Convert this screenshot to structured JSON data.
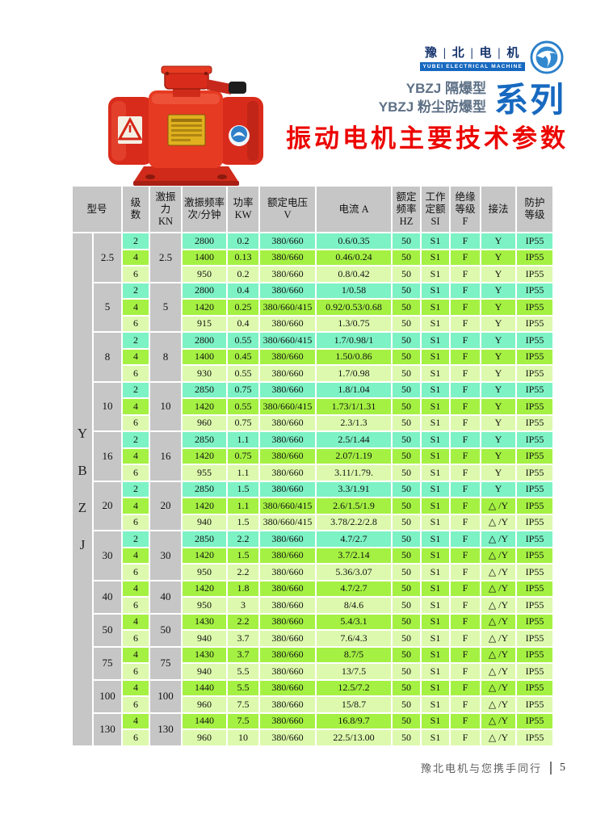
{
  "header": {
    "brand_cn": "豫 | 北 | 电 | 机",
    "brand_en": "YUBEI ELECTRICAL MACHINE",
    "series_line1": "YBZJ 隔爆型",
    "series_line2": "YBZJ 粉尘防爆型",
    "series_label": "系列",
    "title": "振动电机主要技术参数"
  },
  "colors": {
    "accent_blue": "#1769c0",
    "title_red": "#ec0500",
    "row_2pole": "#7df2c5",
    "row_4pole": "#a5f143",
    "row_6pole": "#ddf9ad",
    "cell_gray": "#c6c6c6"
  },
  "table": {
    "headers": [
      "型号",
      "级\n数",
      "激振\n力\nKN",
      "激振频率\n次/分钟",
      "功率\nKW",
      "额定电压\nV",
      "电流 A",
      "额定\n频率\nHZ",
      "工作\n定额\nSI",
      "绝缘\n等级\nF",
      "接法",
      "防护\n等级"
    ],
    "model_vertical": [
      "Y",
      "B",
      "Z",
      "J"
    ],
    "groups": [
      {
        "model": "2.5",
        "force": "2.5",
        "rows": [
          {
            "poles": "2",
            "freq": "2800",
            "power": "0.2",
            "voltage": "380/660",
            "current": "0.6/0.35",
            "hz": "50",
            "duty": "S1",
            "insulation": "F",
            "connection": "Y",
            "protection": "IP55"
          },
          {
            "poles": "4",
            "freq": "1400",
            "power": "0.13",
            "voltage": "380/660",
            "current": "0.46/0.24",
            "hz": "50",
            "duty": "S1",
            "insulation": "F",
            "connection": "Y",
            "protection": "IP55"
          },
          {
            "poles": "6",
            "freq": "950",
            "power": "0.2",
            "voltage": "380/660",
            "current": "0.8/0.42",
            "hz": "50",
            "duty": "S1",
            "insulation": "F",
            "connection": "Y",
            "protection": "IP55"
          }
        ]
      },
      {
        "model": "5",
        "force": "5",
        "rows": [
          {
            "poles": "2",
            "freq": "2800",
            "power": "0.4",
            "voltage": "380/660",
            "current": "1/0.58",
            "hz": "50",
            "duty": "S1",
            "insulation": "F",
            "connection": "Y",
            "protection": "IP55"
          },
          {
            "poles": "4",
            "freq": "1420",
            "power": "0.25",
            "voltage": "380/660/415",
            "current": "0.92/0.53/0.68",
            "hz": "50",
            "duty": "S1",
            "insulation": "F",
            "connection": "Y",
            "protection": "IP55"
          },
          {
            "poles": "6",
            "freq": "915",
            "power": "0.4",
            "voltage": "380/660",
            "current": "1.3/0.75",
            "hz": "50",
            "duty": "S1",
            "insulation": "F",
            "connection": "Y",
            "protection": "IP55"
          }
        ]
      },
      {
        "model": "8",
        "force": "8",
        "rows": [
          {
            "poles": "2",
            "freq": "2800",
            "power": "0.55",
            "voltage": "380/660/415",
            "current": "1.7/0.98/1",
            "hz": "50",
            "duty": "S1",
            "insulation": "F",
            "connection": "Y",
            "protection": "IP55"
          },
          {
            "poles": "4",
            "freq": "1400",
            "power": "0.45",
            "voltage": "380/660",
            "current": "1.50/0.86",
            "hz": "50",
            "duty": "S1",
            "insulation": "F",
            "connection": "Y",
            "protection": "IP55"
          },
          {
            "poles": "6",
            "freq": "930",
            "power": "0.55",
            "voltage": "380/660",
            "current": "1.7/0.98",
            "hz": "50",
            "duty": "S1",
            "insulation": "F",
            "connection": "Y",
            "protection": "IP55"
          }
        ]
      },
      {
        "model": "10",
        "force": "10",
        "rows": [
          {
            "poles": "2",
            "freq": "2850",
            "power": "0.75",
            "voltage": "380/660",
            "current": "1.8/1.04",
            "hz": "50",
            "duty": "S1",
            "insulation": "F",
            "connection": "Y",
            "protection": "IP55"
          },
          {
            "poles": "4",
            "freq": "1420",
            "power": "0.55",
            "voltage": "380/660/415",
            "current": "1.73/1/1.31",
            "hz": "50",
            "duty": "S1",
            "insulation": "F",
            "connection": "Y",
            "protection": "IP55"
          },
          {
            "poles": "6",
            "freq": "960",
            "power": "0.75",
            "voltage": "380/660",
            "current": "2.3/1.3",
            "hz": "50",
            "duty": "S1",
            "insulation": "F",
            "connection": "Y",
            "protection": "IP55"
          }
        ]
      },
      {
        "model": "16",
        "force": "16",
        "rows": [
          {
            "poles": "2",
            "freq": "2850",
            "power": "1.1",
            "voltage": "380/660",
            "current": "2.5/1.44",
            "hz": "50",
            "duty": "S1",
            "insulation": "F",
            "connection": "Y",
            "protection": "IP55"
          },
          {
            "poles": "4",
            "freq": "1420",
            "power": "0.75",
            "voltage": "380/660",
            "current": "2.07/1.19",
            "hz": "50",
            "duty": "S1",
            "insulation": "F",
            "connection": "Y",
            "protection": "IP55"
          },
          {
            "poles": "6",
            "freq": "955",
            "power": "1.1",
            "voltage": "380/660",
            "current": "3.11/1.79.",
            "hz": "50",
            "duty": "S1",
            "insulation": "F",
            "connection": "Y",
            "protection": "IP55"
          }
        ]
      },
      {
        "model": "20",
        "force": "20",
        "rows": [
          {
            "poles": "2",
            "freq": "2850",
            "power": "1.5",
            "voltage": "380/660",
            "current": "3.3/1.91",
            "hz": "50",
            "duty": "S1",
            "insulation": "F",
            "connection": "Y",
            "protection": "IP55"
          },
          {
            "poles": "4",
            "freq": "1420",
            "power": "1.1",
            "voltage": "380/660/415",
            "current": "2.6/1.5/1.9",
            "hz": "50",
            "duty": "S1",
            "insulation": "F",
            "connection": "△ /Y",
            "protection": "IP55"
          },
          {
            "poles": "6",
            "freq": "940",
            "power": "1.5",
            "voltage": "380/660/415",
            "current": "3.78/2.2/2.8",
            "hz": "50",
            "duty": "S1",
            "insulation": "F",
            "connection": "△ /Y",
            "protection": "IP55"
          }
        ]
      },
      {
        "model": "30",
        "force": "30",
        "rows": [
          {
            "poles": "2",
            "freq": "2850",
            "power": "2.2",
            "voltage": "380/660",
            "current": "4.7/2.7",
            "hz": "50",
            "duty": "S1",
            "insulation": "F",
            "connection": "△ /Y",
            "protection": "IP55"
          },
          {
            "poles": "4",
            "freq": "1420",
            "power": "1.5",
            "voltage": "380/660",
            "current": "3.7/2.14",
            "hz": "50",
            "duty": "S1",
            "insulation": "F",
            "connection": "△ /Y",
            "protection": "IP55"
          },
          {
            "poles": "6",
            "freq": "950",
            "power": "2.2",
            "voltage": "380/660",
            "current": "5.36/3.07",
            "hz": "50",
            "duty": "S1",
            "insulation": "F",
            "connection": "△ /Y",
            "protection": "IP55"
          }
        ]
      },
      {
        "model": "40",
        "force": "40",
        "rows": [
          {
            "poles": "4",
            "freq": "1420",
            "power": "1.8",
            "voltage": "380/660",
            "current": "4.7/2.7",
            "hz": "50",
            "duty": "S1",
            "insulation": "F",
            "connection": "△ /Y",
            "protection": "IP55"
          },
          {
            "poles": "6",
            "freq": "950",
            "power": "3",
            "voltage": "380/660",
            "current": "8/4.6",
            "hz": "50",
            "duty": "S1",
            "insulation": "F",
            "connection": "△ /Y",
            "protection": "IP55"
          }
        ]
      },
      {
        "model": "50",
        "force": "50",
        "rows": [
          {
            "poles": "4",
            "freq": "1430",
            "power": "2.2",
            "voltage": "380/660",
            "current": "5.4/3.1",
            "hz": "50",
            "duty": "S1",
            "insulation": "F",
            "connection": "△ /Y",
            "protection": "IP55"
          },
          {
            "poles": "6",
            "freq": "940",
            "power": "3.7",
            "voltage": "380/660",
            "current": "7.6/4.3",
            "hz": "50",
            "duty": "S1",
            "insulation": "F",
            "connection": "△ /Y",
            "protection": "IP55"
          }
        ]
      },
      {
        "model": "75",
        "force": "75",
        "rows": [
          {
            "poles": "4",
            "freq": "1430",
            "power": "3.7",
            "voltage": "380/660",
            "current": "8.7/5",
            "hz": "50",
            "duty": "S1",
            "insulation": "F",
            "connection": "△ /Y",
            "protection": "IP55"
          },
          {
            "poles": "6",
            "freq": "940",
            "power": "5.5",
            "voltage": "380/660",
            "current": "13/7.5",
            "hz": "50",
            "duty": "S1",
            "insulation": "F",
            "connection": "△ /Y",
            "protection": "IP55"
          }
        ]
      },
      {
        "model": "100",
        "force": "100",
        "rows": [
          {
            "poles": "4",
            "freq": "1440",
            "power": "5.5",
            "voltage": "380/660",
            "current": "12.5/7.2",
            "hz": "50",
            "duty": "S1",
            "insulation": "F",
            "connection": "△ /Y",
            "protection": "IP55"
          },
          {
            "poles": "6",
            "freq": "960",
            "power": "7.5",
            "voltage": "380/660",
            "current": "15/8.7",
            "hz": "50",
            "duty": "S1",
            "insulation": "F",
            "connection": "△ /Y",
            "protection": "IP55"
          }
        ]
      },
      {
        "model": "130",
        "force": "130",
        "rows": [
          {
            "poles": "4",
            "freq": "1440",
            "power": "7.5",
            "voltage": "380/660",
            "current": "16.8/9.7",
            "hz": "50",
            "duty": "S1",
            "insulation": "F",
            "connection": "△ /Y",
            "protection": "IP55"
          },
          {
            "poles": "6",
            "freq": "960",
            "power": "10",
            "voltage": "380/660",
            "current": "22.5/13.00",
            "hz": "50",
            "duty": "S1",
            "insulation": "F",
            "connection": "△ /Y",
            "protection": "IP55"
          }
        ]
      }
    ]
  },
  "footer": {
    "slogan": "豫北电机与您携手同行",
    "page_number": "5"
  }
}
